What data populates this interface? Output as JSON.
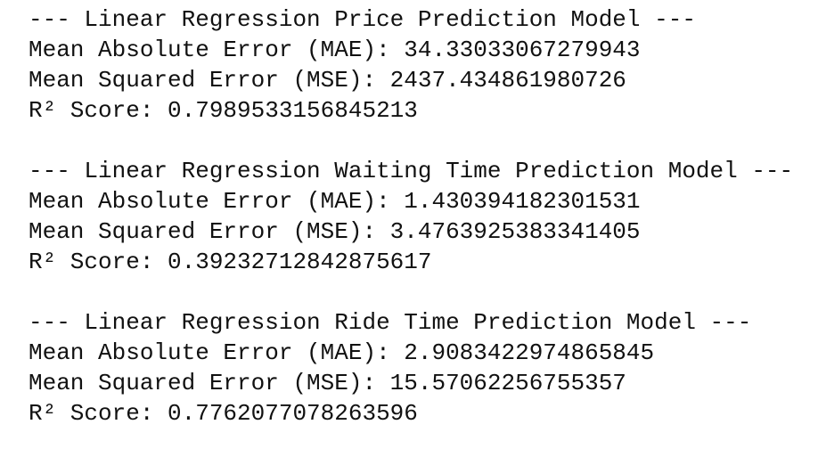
{
  "output": {
    "blocks": [
      {
        "heading": "--- Linear Regression Price Prediction Model ---",
        "lines": [
          "Mean Absolute Error (MAE): 34.33033067279943",
          "Mean Squared Error (MSE): 2437.434861980726",
          "R² Score: 0.7989533156845213"
        ]
      },
      {
        "heading": "--- Linear Regression Waiting Time Prediction Model ---",
        "lines": [
          "Mean Absolute Error (MAE): 1.430394182301531",
          "Mean Squared Error (MSE): 3.4763925383341405",
          "R² Score: 0.39232712842875617"
        ]
      },
      {
        "heading": "--- Linear Regression Ride Time Prediction Model ---",
        "lines": [
          "Mean Absolute Error (MAE): 2.9083422974865845",
          "Mean Squared Error (MSE): 15.57062256755357",
          "R² Score: 0.7762077078263596"
        ]
      }
    ]
  }
}
